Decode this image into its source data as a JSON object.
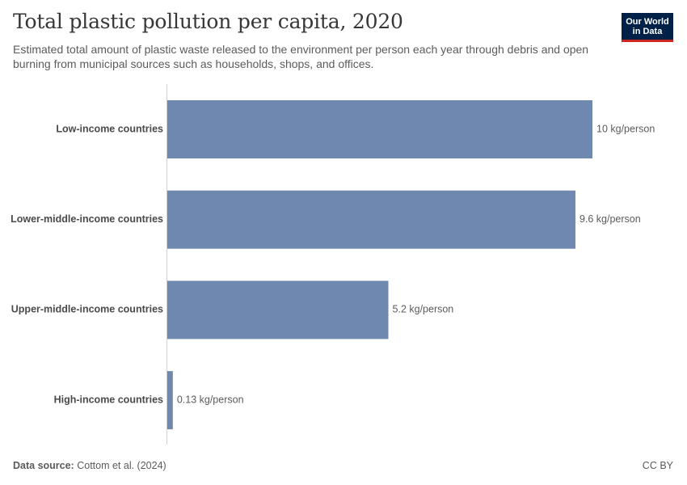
{
  "header": {
    "title": "Total plastic pollution per capita, 2020",
    "subtitle": "Estimated total amount of plastic waste released to the environment per person each year through debris and open burning from municipal sources such as households, shops, and offices."
  },
  "logo": {
    "line1": "Our World",
    "line2": "in Data",
    "bg_color": "#002147",
    "accent_color": "#ce261e"
  },
  "footer": {
    "source_label": "Data source:",
    "source_value": "Cottom et al. (2024)",
    "license": "CC BY"
  },
  "chart_data": {
    "type": "bar",
    "orientation": "horizontal",
    "categories": [
      "Low-income countries",
      "Lower-middle-income countries",
      "Upper-middle-income countries",
      "High-income countries"
    ],
    "values": [
      10,
      9.6,
      5.2,
      0.13
    ],
    "value_labels": [
      "10 kg/person",
      "9.6 kg/person",
      "5.2 kg/person",
      "0.13 kg/person"
    ],
    "unit": "kg/person",
    "xlim": [
      0,
      10
    ],
    "bar_color": "#6f88b0",
    "grid": false
  }
}
